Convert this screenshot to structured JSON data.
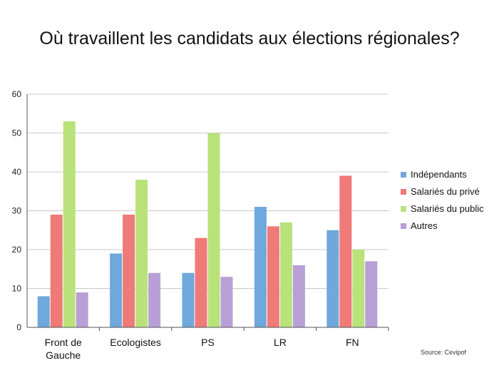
{
  "chart_data": {
    "type": "bar",
    "title": "Où travaillent les candidats aux élections régionales?",
    "categories": [
      "Front de Gauche",
      "Ecologistes",
      "PS",
      "LR",
      "FN"
    ],
    "category_lines": [
      [
        "Front de",
        "Gauche"
      ],
      [
        "Ecologistes"
      ],
      [
        "PS"
      ],
      [
        "LR"
      ],
      [
        "FN"
      ]
    ],
    "series": [
      {
        "name": "Indépendants",
        "color": "#6fa8dc",
        "values": [
          8,
          19,
          14,
          31,
          25
        ]
      },
      {
        "name": "Salariés du privé",
        "color": "#ef7a78",
        "values": [
          29,
          29,
          23,
          26,
          39
        ]
      },
      {
        "name": "Salariés du public",
        "color": "#b9e27a",
        "values": [
          53,
          38,
          50,
          27,
          20
        ]
      },
      {
        "name": "Autres",
        "color": "#b8a0d6",
        "values": [
          9,
          14,
          13,
          16,
          17
        ]
      }
    ],
    "ylim": [
      0,
      60
    ],
    "yticks": [
      0,
      10,
      20,
      30,
      40,
      50,
      60
    ],
    "grid": true,
    "legend": "right",
    "xlabel": "",
    "ylabel": ""
  },
  "source": "Source: Cevipof"
}
